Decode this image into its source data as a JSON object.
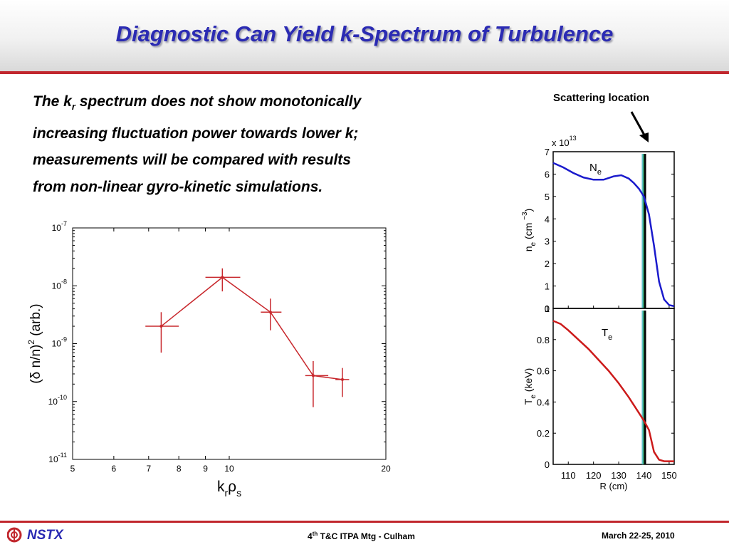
{
  "slide": {
    "title": "Diagnostic Can Yield k-Spectrum of Turbulence",
    "body": {
      "line1_a": "The k",
      "line1_sub": "r",
      "line1_b": " spectrum does not show monotonically",
      "line2": "increasing fluctuation power towards lower k;",
      "line3": "measurements will be compared with results",
      "line4": "from non-linear gyro-kinetic simulations."
    },
    "scattering_label": "Scattering location",
    "footer": {
      "logo_text": "NSTX",
      "meeting_pre": "4",
      "meeting_sup": "th",
      "meeting_post": " T&C ITPA Mtg - Culham",
      "date": "March 22-25, 2010"
    }
  },
  "colors": {
    "title": "#2b2bb3",
    "accent_red": "#c1272d",
    "ne_line": "#1a1acc",
    "te_line": "#cc1a1a",
    "kspec": "#c8282d"
  },
  "chart_data": [
    {
      "type": "scatter",
      "title": "",
      "xlabel": "k_r ρ_s",
      "ylabel": "(δ n/n)² (arb.)",
      "xscale": "log",
      "yscale": "log",
      "xlim": [
        5,
        20
      ],
      "ylim": [
        1e-11,
        1e-07
      ],
      "x_ticks": [
        "5",
        "6",
        "7",
        "8",
        "9",
        "10",
        "20"
      ],
      "y_ticks": [
        "10^-11",
        "10^-10",
        "10^-9",
        "10^-8",
        "10^-7"
      ],
      "series": [
        {
          "points": [
            {
              "x": 7.4,
              "y": 2e-09,
              "ylo": 7e-10,
              "yhi": 3.5e-09,
              "xlo": 6.9,
              "xhi": 8.0
            },
            {
              "x": 9.7,
              "y": 1.4e-08,
              "ylo": 8e-09,
              "yhi": 2e-08,
              "xlo": 9.0,
              "xhi": 10.5
            },
            {
              "x": 12.0,
              "y": 3.5e-09,
              "ylo": 1.7e-09,
              "yhi": 6e-09,
              "xlo": 11.5,
              "xhi": 12.6
            },
            {
              "x": 14.5,
              "y": 2.8e-10,
              "ylo": 8e-11,
              "yhi": 5e-10,
              "xlo": 14.0,
              "xhi": 15.5
            },
            {
              "x": 16.5,
              "y": 2.4e-10,
              "ylo": 1.2e-10,
              "yhi": 3.8e-10,
              "xlo": 16.0,
              "xhi": 17.0
            }
          ]
        }
      ],
      "grid": false
    },
    {
      "type": "line",
      "title": "",
      "xlabel": "R (cm)",
      "ylabel": "n_e (cm^-3)",
      "multiplier": "x 10^13",
      "xlim": [
        104,
        152
      ],
      "ylim": [
        0,
        7
      ],
      "x_ticks": [
        "110",
        "120",
        "130",
        "140",
        "150"
      ],
      "y_ticks": [
        "0",
        "1",
        "2",
        "3",
        "4",
        "5",
        "6",
        "7"
      ],
      "annotation": "N_e",
      "series": [
        {
          "x": [
            104,
            108,
            112,
            116,
            120,
            124,
            128,
            131,
            134,
            136,
            138,
            140,
            142,
            144,
            146,
            148,
            150,
            152
          ],
          "y": [
            6.5,
            6.3,
            6.05,
            5.85,
            5.75,
            5.75,
            5.9,
            5.95,
            5.8,
            5.6,
            5.35,
            5.0,
            4.2,
            2.8,
            1.2,
            0.4,
            0.15,
            0.1
          ]
        }
      ],
      "vertical_markers_R": [
        139.5,
        140.0,
        140.5
      ],
      "vertical_marker_colors": [
        "#5bc0c9",
        "#2e8b57",
        "#000000"
      ],
      "grid": false
    },
    {
      "type": "line",
      "title": "",
      "xlabel": "R (cm)",
      "ylabel": "T_e (keV)",
      "xlim": [
        104,
        152
      ],
      "ylim": [
        0,
        1
      ],
      "x_ticks": [
        "110",
        "120",
        "130",
        "140",
        "150"
      ],
      "y_ticks": [
        "0",
        "0.2",
        "0.4",
        "0.6",
        "0.8",
        "1"
      ],
      "annotation": "T_e",
      "series": [
        {
          "x": [
            104,
            107,
            110,
            114,
            118,
            122,
            126,
            130,
            134,
            138,
            140,
            142,
            143,
            144,
            146,
            148,
            150,
            152
          ],
          "y": [
            0.92,
            0.9,
            0.86,
            0.8,
            0.74,
            0.67,
            0.6,
            0.52,
            0.43,
            0.33,
            0.28,
            0.22,
            0.15,
            0.08,
            0.03,
            0.02,
            0.02,
            0.02
          ]
        }
      ],
      "vertical_markers_R": [
        139.5,
        140.0,
        140.5
      ],
      "vertical_marker_colors": [
        "#5bc0c9",
        "#2e8b57",
        "#000000"
      ],
      "grid": false
    }
  ]
}
